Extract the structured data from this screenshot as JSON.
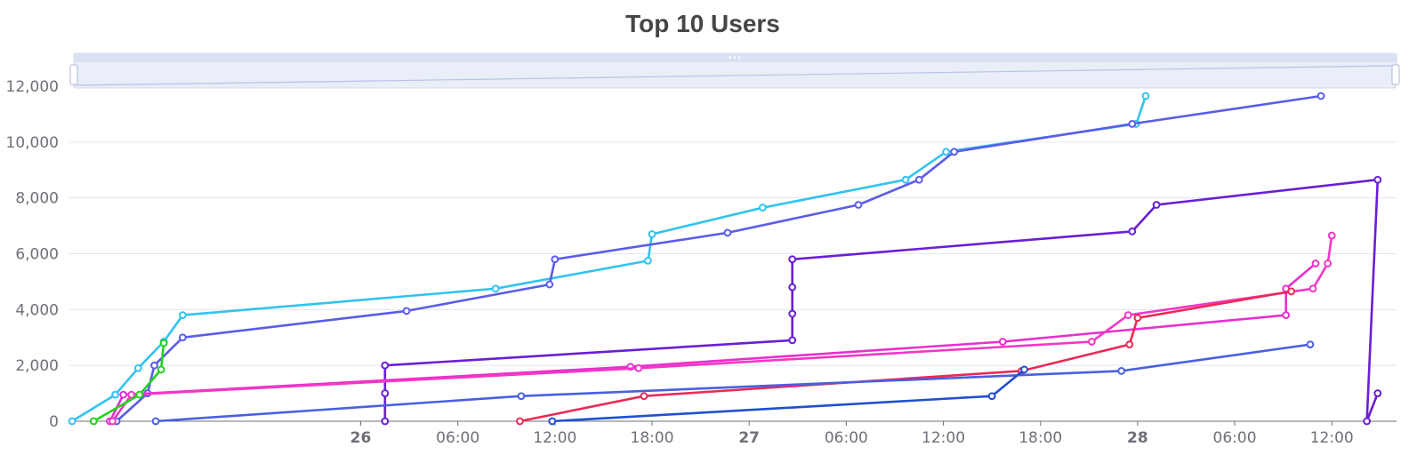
{
  "chart_data": {
    "type": "line",
    "title": "Top 10 Users",
    "x_axis": {
      "type": "time",
      "min": "2024-01-25T06:00",
      "max": "2024-01-28T16:00",
      "ticks": [
        {
          "label": "26",
          "at": "2024-01-26T00:00",
          "major": true
        },
        {
          "label": "06:00",
          "at": "2024-01-26T06:00",
          "major": false
        },
        {
          "label": "12:00",
          "at": "2024-01-26T12:00",
          "major": false
        },
        {
          "label": "18:00",
          "at": "2024-01-26T18:00",
          "major": false
        },
        {
          "label": "27",
          "at": "2024-01-27T00:00",
          "major": true
        },
        {
          "label": "06:00",
          "at": "2024-01-27T06:00",
          "major": false
        },
        {
          "label": "12:00",
          "at": "2024-01-27T12:00",
          "major": false
        },
        {
          "label": "18:00",
          "at": "2024-01-27T18:00",
          "major": false
        },
        {
          "label": "28",
          "at": "2024-01-28T00:00",
          "major": true
        },
        {
          "label": "06:00",
          "at": "2024-01-28T06:00",
          "major": false
        },
        {
          "label": "12:00",
          "at": "2024-01-28T12:00",
          "major": false
        }
      ]
    },
    "y_axis": {
      "min": 0,
      "max": 12000,
      "ticks": [
        {
          "label": "0",
          "value": 0
        },
        {
          "label": "2,000",
          "value": 2000
        },
        {
          "label": "4,000",
          "value": 4000
        },
        {
          "label": "6,000",
          "value": 6000
        },
        {
          "label": "8,000",
          "value": 8000
        },
        {
          "label": "10,000",
          "value": 10000
        },
        {
          "label": "12,000",
          "value": 12000
        }
      ]
    },
    "grid": true,
    "data_zoom": true,
    "series": [
      {
        "color": "#31c3f0",
        "points": [
          [
            "2024-01-25T06:10",
            0
          ],
          [
            "2024-01-25T08:50",
            950
          ],
          [
            "2024-01-25T10:15",
            1900
          ],
          [
            "2024-01-25T11:50",
            2850
          ],
          [
            "2024-01-25T13:00",
            3800
          ],
          [
            "2024-01-26T08:20",
            4750
          ],
          [
            "2024-01-26T17:45",
            5750
          ],
          [
            "2024-01-26T18:00",
            6700
          ],
          [
            "2024-01-27T00:50",
            7650
          ],
          [
            "2024-01-27T09:40",
            8650
          ],
          [
            "2024-01-27T12:10",
            9650
          ],
          [
            "2024-01-27T23:55",
            10650
          ],
          [
            "2024-01-28T00:30",
            11650
          ]
        ]
      },
      {
        "color": "#5b5ce8",
        "points": [
          [
            "2024-01-25T08:55",
            0
          ],
          [
            "2024-01-25T10:50",
            1000
          ],
          [
            "2024-01-25T11:15",
            2000
          ],
          [
            "2024-01-25T13:00",
            3000
          ],
          [
            "2024-01-26T02:50",
            3950
          ],
          [
            "2024-01-26T11:40",
            4900
          ],
          [
            "2024-01-26T12:00",
            5800
          ],
          [
            "2024-01-26T22:40",
            6750
          ],
          [
            "2024-01-27T06:45",
            7750
          ],
          [
            "2024-01-27T10:30",
            8650
          ],
          [
            "2024-01-27T12:40",
            9650
          ],
          [
            "2024-01-27T23:40",
            10650
          ],
          [
            "2024-01-28T11:20",
            11650
          ]
        ]
      },
      {
        "color": "#6a1ed6",
        "points": [
          [
            "2024-01-26T01:30",
            0
          ],
          [
            "2024-01-26T01:30",
            1000
          ],
          [
            "2024-01-26T01:30",
            2000
          ],
          [
            "2024-01-27T02:40",
            2900
          ],
          [
            "2024-01-27T02:40",
            3850
          ],
          [
            "2024-01-27T02:40",
            4800
          ],
          [
            "2024-01-27T02:40",
            5800
          ],
          [
            "2024-01-27T23:40",
            6800
          ],
          [
            "2024-01-28T01:10",
            7750
          ],
          [
            "2024-01-28T14:50",
            8650
          ],
          [
            "2024-01-28T14:10",
            0
          ],
          [
            "2024-01-28T14:50",
            1000
          ]
        ]
      },
      {
        "color": "#e82fcf",
        "points": [
          [
            "2024-01-25T08:30",
            0
          ],
          [
            "2024-01-25T09:20",
            950
          ],
          [
            "2024-01-26T16:40",
            1950
          ],
          [
            "2024-01-27T15:40",
            2850
          ],
          [
            "2024-01-28T09:10",
            3800
          ],
          [
            "2024-01-28T09:10",
            4750
          ],
          [
            "2024-01-28T11:00",
            5650
          ]
        ]
      },
      {
        "color": "#f237c5",
        "points": [
          [
            "2024-01-25T08:40",
            0
          ],
          [
            "2024-01-25T09:50",
            950
          ],
          [
            "2024-01-26T17:10",
            1900
          ],
          [
            "2024-01-27T21:10",
            2850
          ],
          [
            "2024-01-27T23:25",
            3800
          ],
          [
            "2024-01-28T10:50",
            4750
          ],
          [
            "2024-01-28T11:45",
            5650
          ],
          [
            "2024-01-28T12:00",
            6650
          ]
        ]
      },
      {
        "color": "#ec2a55",
        "points": [
          [
            "2024-01-26T09:50",
            0
          ],
          [
            "2024-01-26T17:30",
            900
          ],
          [
            "2024-01-27T16:50",
            1800
          ],
          [
            "2024-01-27T23:30",
            2750
          ],
          [
            "2024-01-28T00:00",
            3700
          ],
          [
            "2024-01-28T09:30",
            4650
          ]
        ]
      },
      {
        "color": "#4a5fe0",
        "points": [
          [
            "2024-01-25T11:20",
            0
          ],
          [
            "2024-01-26T09:55",
            900
          ],
          [
            "2024-01-27T23:00",
            1800
          ],
          [
            "2024-01-28T10:40",
            2750
          ]
        ]
      },
      {
        "color": "#2050d0",
        "points": [
          [
            "2024-01-26T11:50",
            0
          ],
          [
            "2024-01-27T15:00",
            900
          ],
          [
            "2024-01-27T17:00",
            1850
          ]
        ]
      },
      {
        "color": "#22d11e",
        "points": [
          [
            "2024-01-25T07:30",
            0
          ],
          [
            "2024-01-25T10:20",
            950
          ],
          [
            "2024-01-25T11:40",
            1850
          ],
          [
            "2024-01-25T11:50",
            2800
          ]
        ]
      }
    ]
  }
}
